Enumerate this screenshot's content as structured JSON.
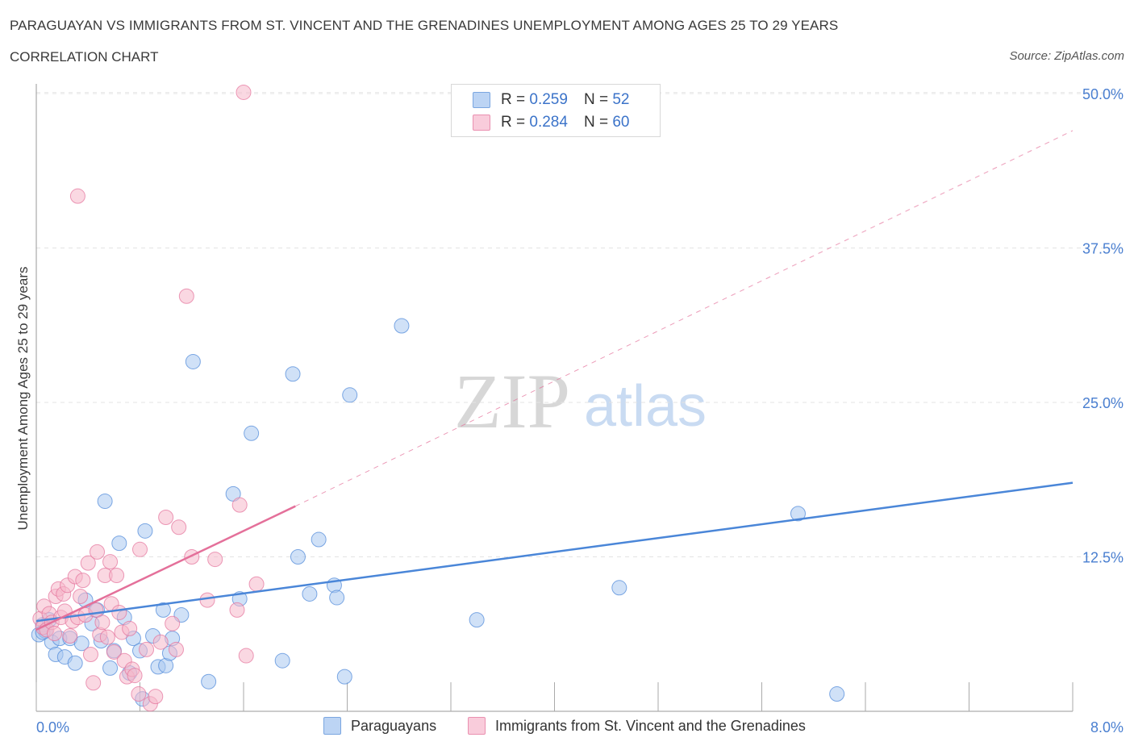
{
  "header": {
    "title": "PARAGUAYAN VS IMMIGRANTS FROM ST. VINCENT AND THE GRENADINES UNEMPLOYMENT AMONG AGES 25 TO 29 YEARS",
    "subtitle": "CORRELATION CHART",
    "source": "Source: ZipAtlas.com"
  },
  "watermark": {
    "zip": "ZIP",
    "atlas": "atlas"
  },
  "legend": {
    "rows": [
      {
        "r_label": "R =",
        "r_value": "0.259",
        "n_label": "N =",
        "n_value": "52",
        "color": "#a9c8f0"
      },
      {
        "r_label": "R =",
        "r_value": "0.284",
        "n_label": "N =",
        "n_value": "60",
        "color": "#f6b8cb"
      }
    ],
    "bottom": [
      {
        "label": "Paraguayans",
        "color": "#a9c8f0"
      },
      {
        "label": "Immigrants from St. Vincent and the Grenadines",
        "color": "#f6b8cb"
      }
    ]
  },
  "chart_data": {
    "type": "scatter",
    "ylabel": "Unemployment Among Ages 25 to 29 years",
    "xlim": [
      0,
      8
    ],
    "ylim": [
      0,
      50
    ],
    "x_tick_labels": [
      "0.0%",
      "8.0%"
    ],
    "y_ticks": [
      12.5,
      25.0,
      37.5,
      50.0
    ],
    "y_tick_labels": [
      "12.5%",
      "25.0%",
      "37.5%",
      "50.0%"
    ],
    "grid": true,
    "colors": {
      "paraguayans": "#4a86d8",
      "svg_immigrants": "#e4709a"
    },
    "series": [
      {
        "name": "Paraguayans",
        "color": "#4a86d8",
        "fill": "#a9c8f0",
        "points": [
          [
            0.02,
            6.2
          ],
          [
            0.05,
            7.0
          ],
          [
            0.07,
            6.5
          ],
          [
            0.1,
            7.4
          ],
          [
            0.12,
            5.6
          ],
          [
            0.15,
            4.6
          ],
          [
            0.18,
            5.9
          ],
          [
            0.22,
            4.4
          ],
          [
            0.26,
            5.9
          ],
          [
            0.3,
            3.9
          ],
          [
            0.35,
            5.5
          ],
          [
            0.38,
            9.0
          ],
          [
            0.43,
            7.1
          ],
          [
            0.47,
            8.2
          ],
          [
            0.5,
            5.7
          ],
          [
            0.53,
            17.0
          ],
          [
            0.57,
            3.5
          ],
          [
            0.6,
            4.9
          ],
          [
            0.64,
            13.6
          ],
          [
            0.68,
            7.6
          ],
          [
            0.72,
            3.1
          ],
          [
            0.75,
            5.9
          ],
          [
            0.8,
            4.9
          ],
          [
            0.84,
            14.6
          ],
          [
            0.9,
            6.1
          ],
          [
            0.94,
            3.6
          ],
          [
            0.98,
            8.2
          ],
          [
            1.0,
            3.7
          ],
          [
            1.03,
            4.7
          ],
          [
            1.05,
            5.9
          ],
          [
            1.12,
            7.8
          ],
          [
            1.21,
            28.3
          ],
          [
            1.33,
            2.4
          ],
          [
            1.52,
            17.6
          ],
          [
            1.57,
            9.1
          ],
          [
            1.66,
            22.5
          ],
          [
            1.9,
            4.1
          ],
          [
            1.98,
            27.3
          ],
          [
            2.02,
            12.5
          ],
          [
            2.11,
            9.5
          ],
          [
            2.18,
            13.9
          ],
          [
            2.3,
            10.2
          ],
          [
            2.32,
            9.2
          ],
          [
            2.38,
            2.8
          ],
          [
            2.42,
            25.6
          ],
          [
            2.82,
            31.2
          ],
          [
            3.4,
            7.4
          ],
          [
            4.5,
            10.0
          ],
          [
            5.88,
            16.0
          ],
          [
            6.18,
            1.4
          ],
          [
            0.05,
            6.4
          ],
          [
            0.82,
            1.0
          ]
        ]
      },
      {
        "name": "Immigrants from St. Vincent and the Grenadines",
        "color": "#e4709a",
        "fill": "#f6b8cb",
        "points": [
          [
            0.03,
            7.5
          ],
          [
            0.05,
            6.8
          ],
          [
            0.06,
            8.5
          ],
          [
            0.08,
            6.6
          ],
          [
            0.1,
            7.9
          ],
          [
            0.12,
            7.2
          ],
          [
            0.14,
            6.3
          ],
          [
            0.15,
            9.3
          ],
          [
            0.17,
            9.9
          ],
          [
            0.19,
            7.6
          ],
          [
            0.21,
            9.5
          ],
          [
            0.22,
            8.1
          ],
          [
            0.24,
            10.2
          ],
          [
            0.26,
            6.1
          ],
          [
            0.28,
            7.3
          ],
          [
            0.3,
            10.9
          ],
          [
            0.32,
            7.6
          ],
          [
            0.34,
            9.3
          ],
          [
            0.36,
            10.6
          ],
          [
            0.38,
            7.8
          ],
          [
            0.4,
            12.0
          ],
          [
            0.42,
            4.6
          ],
          [
            0.44,
            2.3
          ],
          [
            0.46,
            8.2
          ],
          [
            0.47,
            12.9
          ],
          [
            0.49,
            6.2
          ],
          [
            0.51,
            7.2
          ],
          [
            0.53,
            11.0
          ],
          [
            0.55,
            6.0
          ],
          [
            0.57,
            12.1
          ],
          [
            0.58,
            8.7
          ],
          [
            0.6,
            4.8
          ],
          [
            0.62,
            11.0
          ],
          [
            0.64,
            8.0
          ],
          [
            0.66,
            6.4
          ],
          [
            0.68,
            4.1
          ],
          [
            0.7,
            2.8
          ],
          [
            0.72,
            6.7
          ],
          [
            0.74,
            3.4
          ],
          [
            0.76,
            2.9
          ],
          [
            0.79,
            1.4
          ],
          [
            0.8,
            13.1
          ],
          [
            0.85,
            5.0
          ],
          [
            0.88,
            0.6
          ],
          [
            0.92,
            1.2
          ],
          [
            0.96,
            5.6
          ],
          [
            1.0,
            15.7
          ],
          [
            1.05,
            7.1
          ],
          [
            1.08,
            5.0
          ],
          [
            1.1,
            14.9
          ],
          [
            1.16,
            33.6
          ],
          [
            1.2,
            12.5
          ],
          [
            1.32,
            9.0
          ],
          [
            1.38,
            12.3
          ],
          [
            1.55,
            8.2
          ],
          [
            1.57,
            16.7
          ],
          [
            1.7,
            10.3
          ],
          [
            1.62,
            4.5
          ],
          [
            0.32,
            41.7
          ],
          [
            1.6,
            50.1
          ]
        ]
      }
    ],
    "trendlines": [
      {
        "series": "Paraguayans",
        "x": [
          0,
          8
        ],
        "y": [
          7.3,
          18.5
        ],
        "style": "solid"
      },
      {
        "series": "Immigrants from St. Vincent and the Grenadines",
        "x": [
          0,
          2
        ],
        "y": [
          6.6,
          16.6
        ],
        "style": "solid"
      },
      {
        "series": "Immigrants from St. Vincent and the Grenadines",
        "x": [
          2,
          8
        ],
        "y": [
          16.6,
          47.0
        ],
        "style": "dashed"
      }
    ]
  }
}
